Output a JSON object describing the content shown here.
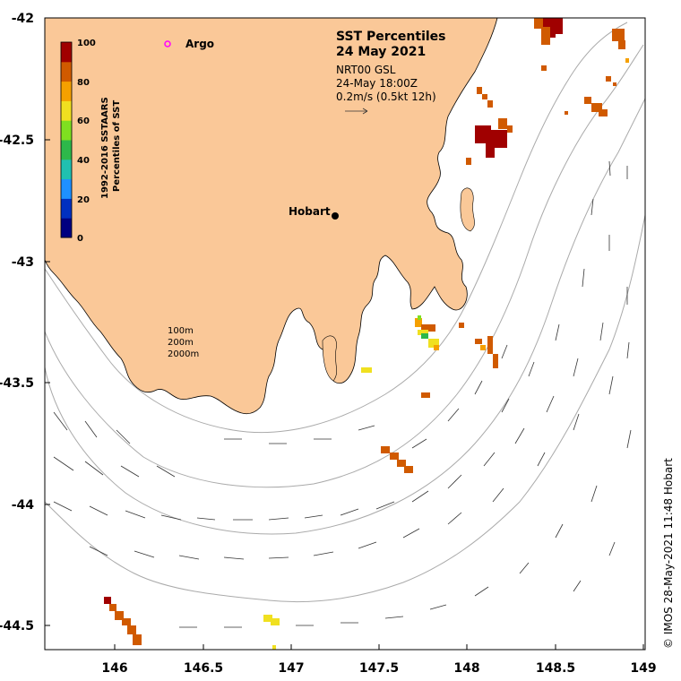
{
  "map": {
    "lat_ticks": [
      "-42",
      "-42.5",
      "-43",
      "-43.5",
      "-44",
      "-44.5"
    ],
    "lon_ticks": [
      "146",
      "146.5",
      "147",
      "147.5",
      "148",
      "148.5",
      "149"
    ],
    "colors": {
      "land": "#fac898",
      "ocean": "#ffffff",
      "contour": "#aaaaaa",
      "frame": "#000000"
    }
  },
  "title": {
    "line1": "SST Percentiles",
    "line2": "24 May 2021"
  },
  "info": {
    "line1": "NRT00 GSL",
    "line2": "24-May 18:00Z",
    "line3": "0.2m/s (0.5kt 12h)"
  },
  "legend": {
    "argo_label": "Argo",
    "argo_color": "#ff00ff",
    "contour_labels": [
      "100m",
      "200m",
      "2000m"
    ]
  },
  "colorbar": {
    "title_line1": "1992-2016 SSTAARS",
    "title_line2": "Percentiles of SST",
    "tick_labels": [
      "100",
      "80",
      "60",
      "40",
      "20",
      "0"
    ],
    "colors": [
      "#000080",
      "#0030c0",
      "#1e90ff",
      "#20c0b0",
      "#2db84a",
      "#7fe020",
      "#f0e020",
      "#f5a000",
      "#d05a00",
      "#a00000"
    ]
  },
  "place": {
    "hobart_label": "Hobart"
  },
  "credit": "© IMOS 28-May-2021 11:48 Hobart"
}
